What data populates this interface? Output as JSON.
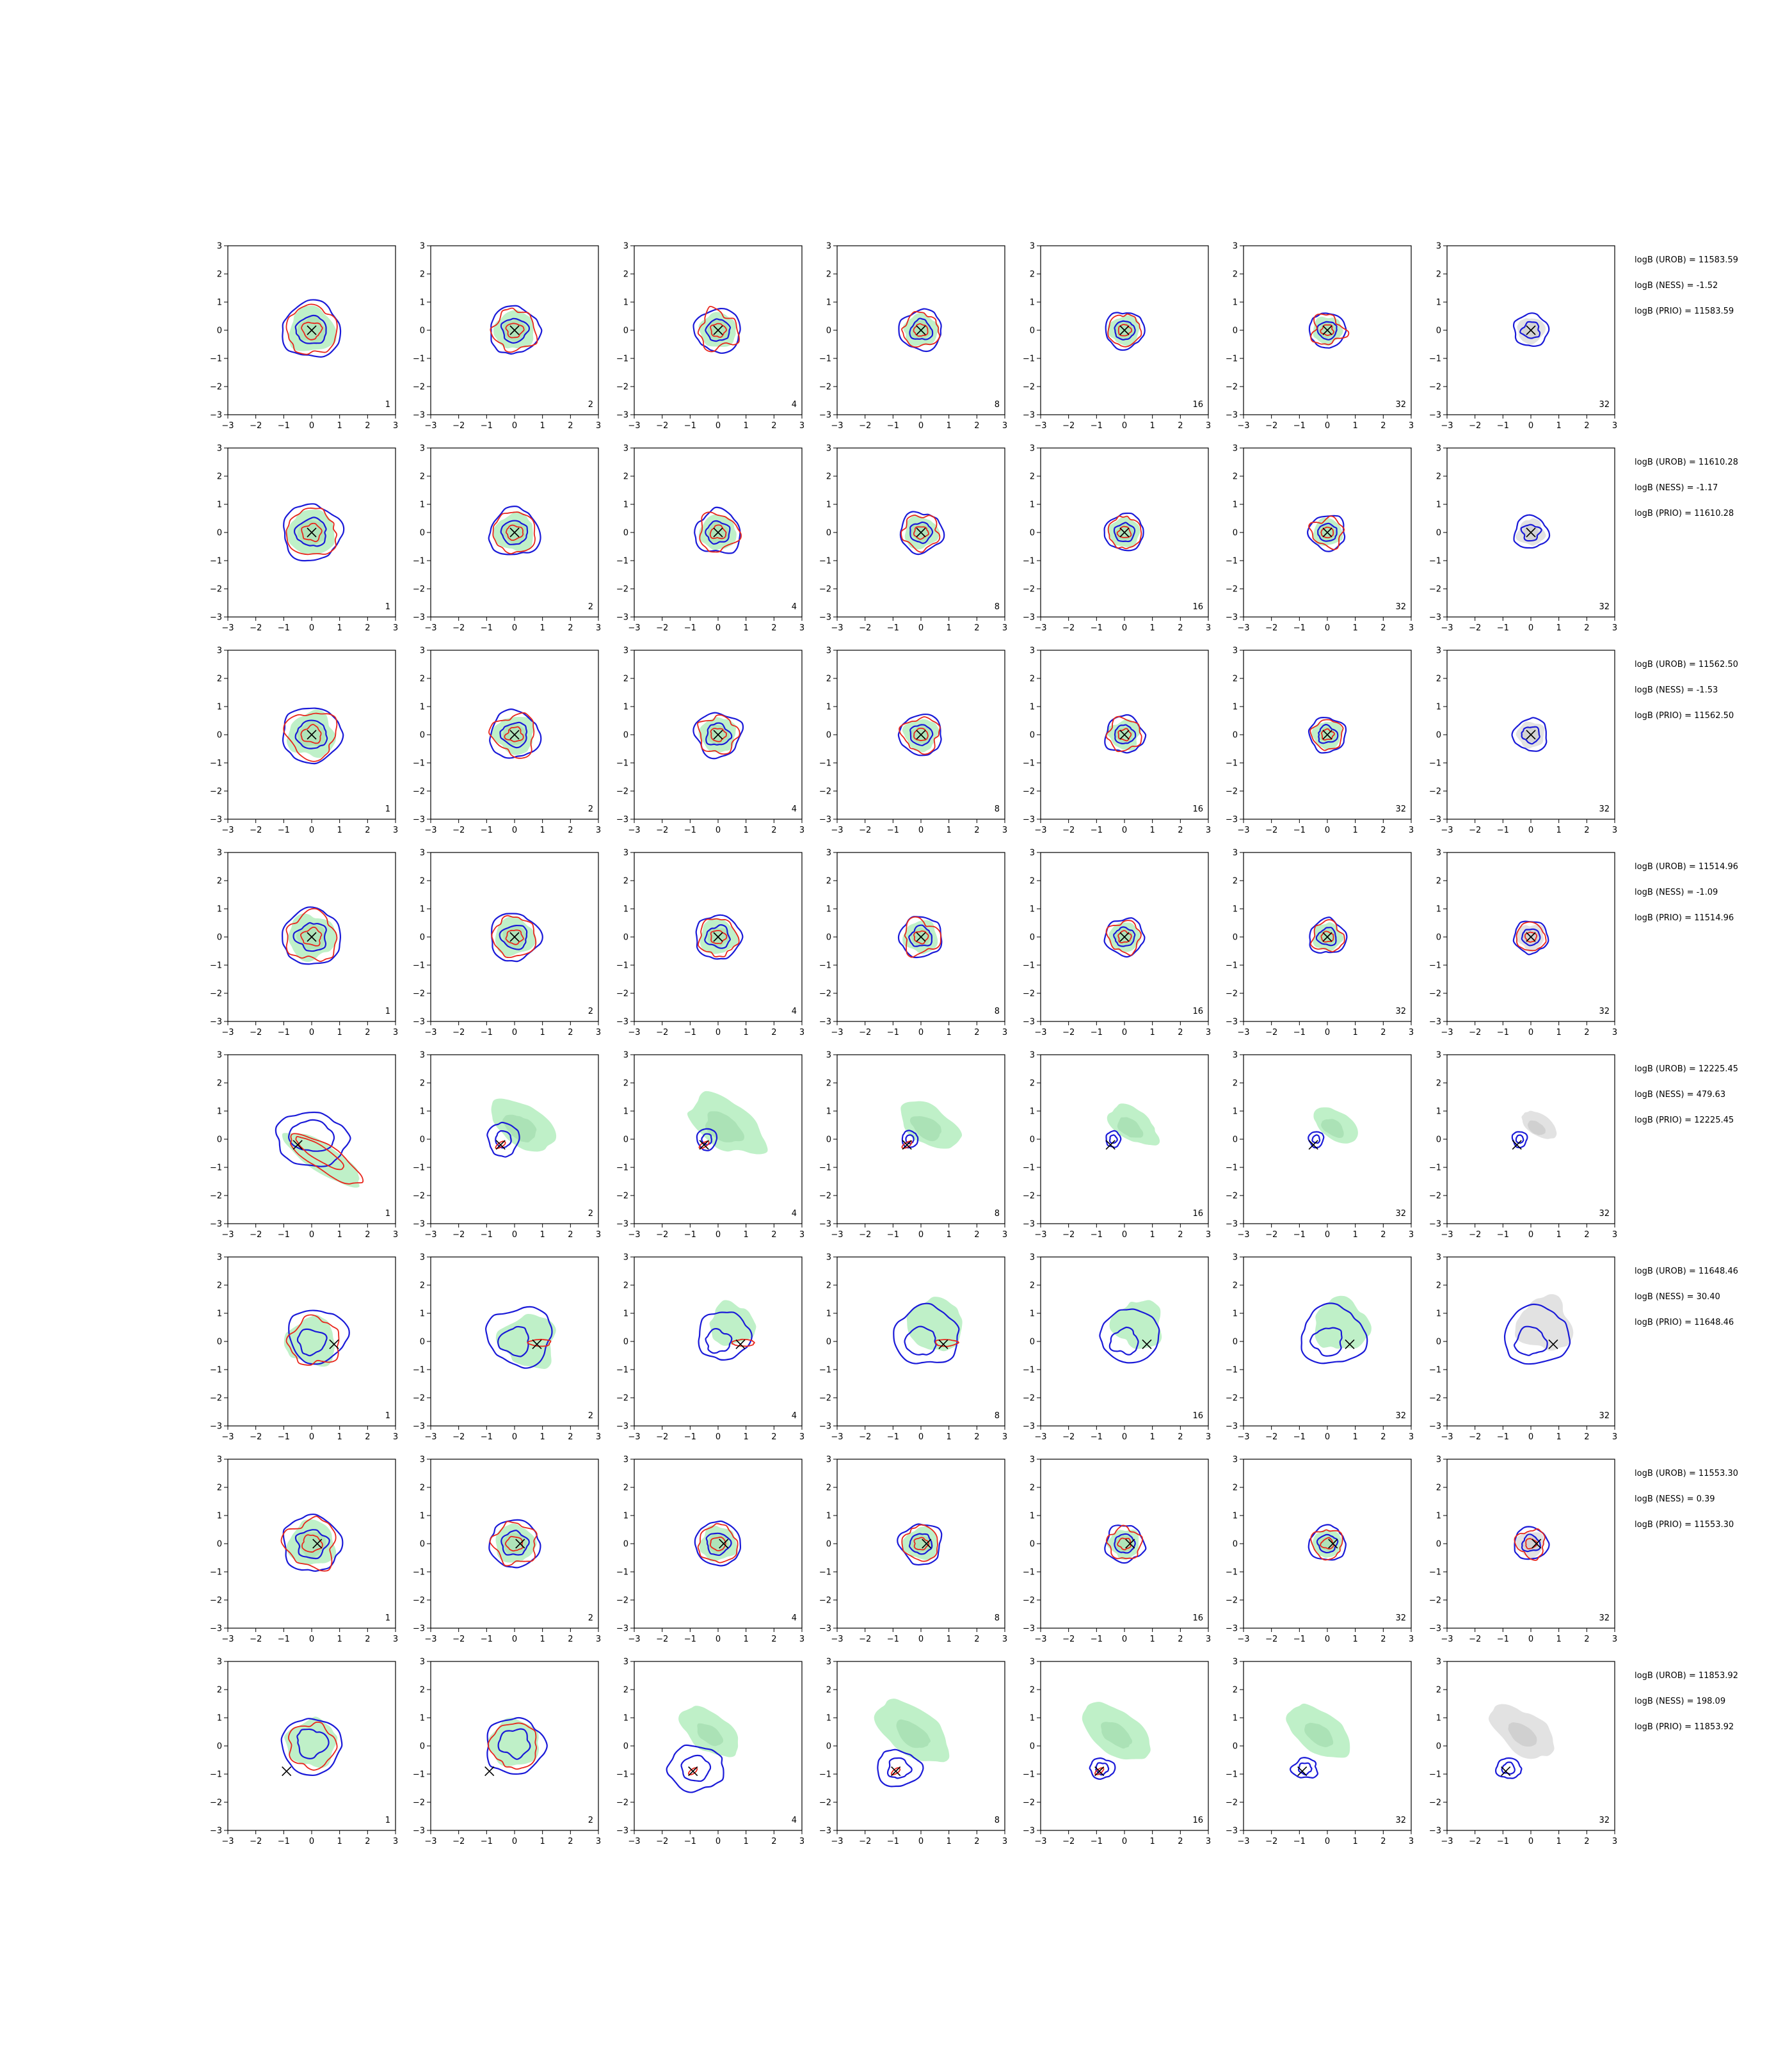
{
  "chart_data": {
    "type": "contour-grid",
    "layout": {
      "rows": 8,
      "cols": 7
    },
    "axes": {
      "xlim": [
        -3,
        3
      ],
      "ylim": [
        -3,
        3
      ],
      "xticks": [
        -3,
        -2,
        -1,
        0,
        1,
        2,
        3
      ],
      "yticks": [
        -3,
        -2,
        -1,
        0,
        1,
        2,
        3
      ]
    },
    "tick_labels": [
      "−3",
      "−2",
      "−1",
      "0",
      "1",
      "2",
      "3"
    ],
    "column_labels": [
      "1",
      "2",
      "4",
      "8",
      "16",
      "32",
      "32"
    ],
    "colors": {
      "red": "#e8261c",
      "blue": "#1a1ad8",
      "green_fill": "#bff0c8",
      "green_dark": "#9fd8aa",
      "grey_fill": "#e2e2e2",
      "grey_dark": "#c4c4c4",
      "marker": "#000000"
    },
    "rows": [
      {
        "mode": "centered",
        "stats": [
          "logB (UROB) = 11583.59",
          "logB (NESS) = -1.52",
          "logB (PRIO) = 11583.59"
        ]
      },
      {
        "mode": "centered",
        "stats": [
          "logB (UROB) = 11610.28",
          "logB (NESS) = -1.17",
          "logB (PRIO) = 11610.28"
        ]
      },
      {
        "mode": "centered",
        "stats": [
          "logB (UROB) = 11562.50",
          "logB (NESS) = -1.53",
          "logB (PRIO) = 11562.50"
        ]
      },
      {
        "mode": "centered",
        "stats": [
          "logB (UROB) = 11514.96",
          "logB (NESS) = -1.09",
          "logB (PRIO) = 11514.96"
        ]
      },
      {
        "mode": "diagonal",
        "marker": [
          -0.5,
          -0.2
        ],
        "stats": [
          "logB (UROB) = 12225.45",
          "logB (NESS) = 479.63",
          "logB (PRIO) = 12225.45"
        ]
      },
      {
        "mode": "right",
        "marker": [
          0.8,
          -0.1
        ],
        "stats": [
          "logB (UROB) = 11648.46",
          "logB (NESS) = 30.40",
          "logB (PRIO) = 11648.46"
        ]
      },
      {
        "mode": "centered",
        "marker": [
          0.2,
          0.0
        ],
        "stats": [
          "logB (UROB) = 11553.30",
          "logB (NESS) = 0.39",
          "logB (PRIO) = 11553.30"
        ]
      },
      {
        "mode": "lower-left",
        "marker": [
          -0.9,
          -0.9
        ],
        "stats": [
          "logB (UROB) = 11853.92",
          "logB (NESS) = 198.09",
          "logB (PRIO) = 11853.92"
        ]
      }
    ]
  }
}
